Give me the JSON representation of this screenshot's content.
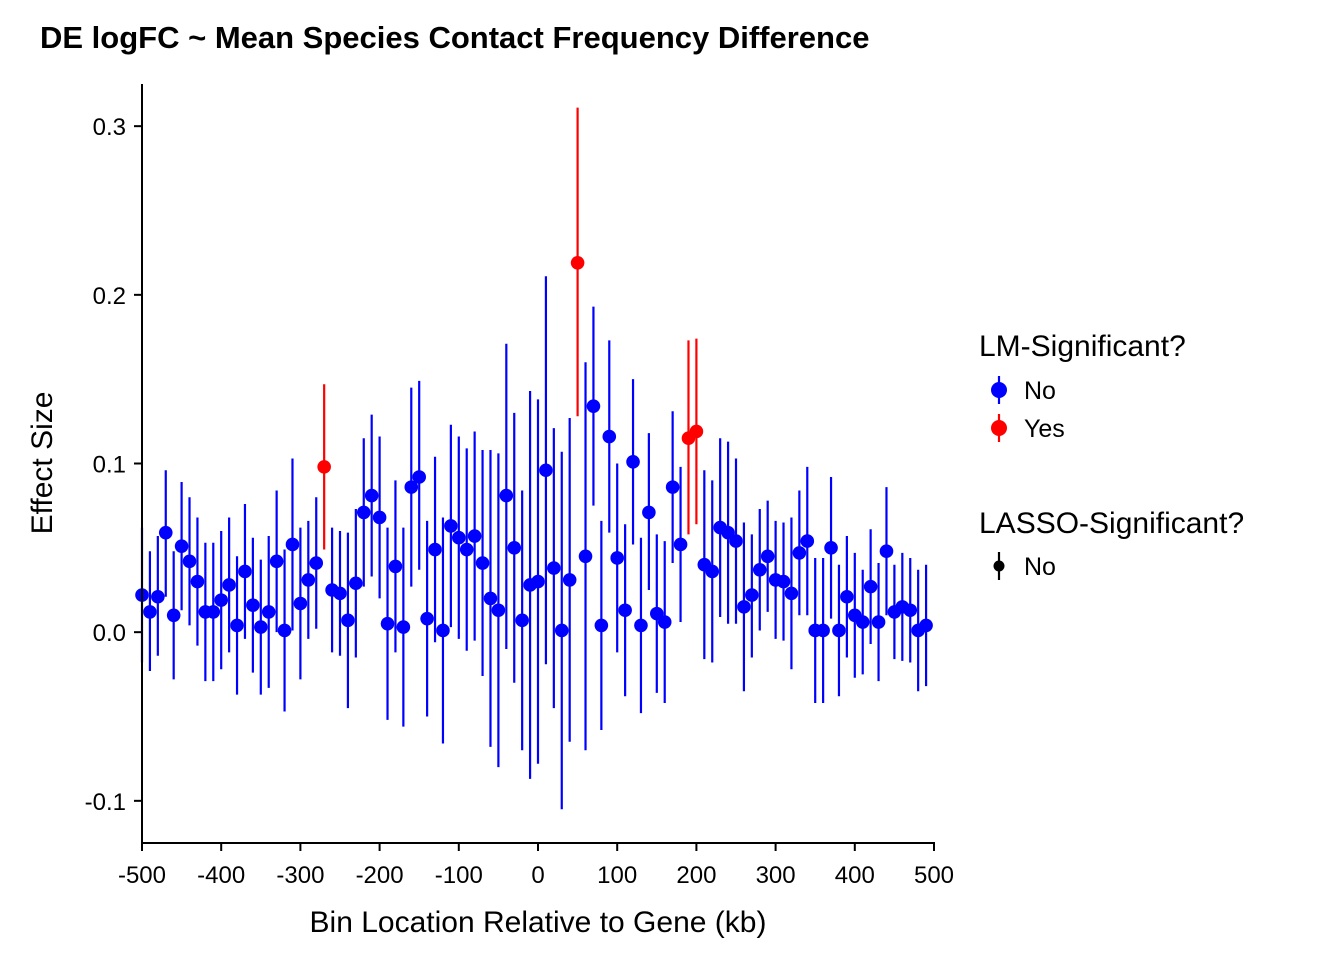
{
  "chart_data": {
    "type": "scatter",
    "title": "DE logFC ~ Mean Species Contact Frequency Difference",
    "xlabel": "Bin Location Relative to Gene (kb)",
    "ylabel": "Effect Size",
    "xlim": [
      -500,
      500
    ],
    "ylim": [
      -0.125,
      0.325
    ],
    "x_ticks": [
      -500,
      -400,
      -300,
      -200,
      -100,
      0,
      100,
      200,
      300,
      400,
      500
    ],
    "x_tick_labels": [
      "-500",
      "-400",
      "-300",
      "-200",
      "-100",
      "0",
      "100",
      "200",
      "300",
      "400",
      "500"
    ],
    "y_ticks": [
      -0.1,
      0.0,
      0.1,
      0.2,
      0.3
    ],
    "y_tick_labels": [
      "-0.1",
      "0.0",
      "0.1",
      "0.2",
      "0.3"
    ],
    "grid": false,
    "legend_placement": "right",
    "colors": {
      "No": "#0000ff",
      "Yes": "#ff0000",
      "lasso": "#000000"
    },
    "legends": [
      {
        "title": "LM-Significant?",
        "entries": [
          {
            "label": "No",
            "color": "#0000ff"
          },
          {
            "label": "Yes",
            "color": "#ff0000"
          }
        ]
      },
      {
        "title": "LASSO-Significant?",
        "entries": [
          {
            "label": "No",
            "color": "#000000"
          }
        ]
      }
    ],
    "points": [
      {
        "x": -500,
        "y": 0.022,
        "lo": -0.018,
        "hi": 0.062,
        "sig": "No"
      },
      {
        "x": -490,
        "y": 0.012,
        "lo": -0.023,
        "hi": 0.048,
        "sig": "No"
      },
      {
        "x": -480,
        "y": 0.021,
        "lo": -0.014,
        "hi": 0.057,
        "sig": "No"
      },
      {
        "x": -470,
        "y": 0.059,
        "lo": 0.021,
        "hi": 0.096,
        "sig": "No"
      },
      {
        "x": -460,
        "y": 0.01,
        "lo": -0.028,
        "hi": 0.048,
        "sig": "No"
      },
      {
        "x": -450,
        "y": 0.051,
        "lo": 0.013,
        "hi": 0.089,
        "sig": "No"
      },
      {
        "x": -440,
        "y": 0.042,
        "lo": 0.004,
        "hi": 0.08,
        "sig": "No"
      },
      {
        "x": -430,
        "y": 0.03,
        "lo": -0.008,
        "hi": 0.068,
        "sig": "No"
      },
      {
        "x": -420,
        "y": 0.012,
        "lo": -0.029,
        "hi": 0.053,
        "sig": "No"
      },
      {
        "x": -410,
        "y": 0.012,
        "lo": -0.029,
        "hi": 0.053,
        "sig": "No"
      },
      {
        "x": -400,
        "y": 0.019,
        "lo": -0.022,
        "hi": 0.06,
        "sig": "No"
      },
      {
        "x": -390,
        "y": 0.028,
        "lo": -0.012,
        "hi": 0.068,
        "sig": "No"
      },
      {
        "x": -380,
        "y": 0.004,
        "lo": -0.037,
        "hi": 0.045,
        "sig": "No"
      },
      {
        "x": -370,
        "y": 0.036,
        "lo": -0.004,
        "hi": 0.076,
        "sig": "No"
      },
      {
        "x": -360,
        "y": 0.016,
        "lo": -0.024,
        "hi": 0.056,
        "sig": "No"
      },
      {
        "x": -350,
        "y": 0.003,
        "lo": -0.037,
        "hi": 0.043,
        "sig": "No"
      },
      {
        "x": -340,
        "y": 0.012,
        "lo": -0.033,
        "hi": 0.057,
        "sig": "No"
      },
      {
        "x": -330,
        "y": 0.042,
        "lo": 0.0,
        "hi": 0.084,
        "sig": "No"
      },
      {
        "x": -320,
        "y": 0.001,
        "lo": -0.047,
        "hi": 0.049,
        "sig": "No"
      },
      {
        "x": -310,
        "y": 0.052,
        "lo": 0.001,
        "hi": 0.103,
        "sig": "No"
      },
      {
        "x": -300,
        "y": 0.017,
        "lo": -0.028,
        "hi": 0.062,
        "sig": "No"
      },
      {
        "x": -290,
        "y": 0.031,
        "lo": -0.004,
        "hi": 0.066,
        "sig": "No"
      },
      {
        "x": -280,
        "y": 0.041,
        "lo": 0.002,
        "hi": 0.08,
        "sig": "No"
      },
      {
        "x": -270,
        "y": 0.098,
        "lo": 0.049,
        "hi": 0.147,
        "sig": "Yes"
      },
      {
        "x": -260,
        "y": 0.025,
        "lo": -0.012,
        "hi": 0.062,
        "sig": "No"
      },
      {
        "x": -250,
        "y": 0.023,
        "lo": -0.014,
        "hi": 0.06,
        "sig": "No"
      },
      {
        "x": -240,
        "y": 0.007,
        "lo": -0.045,
        "hi": 0.059,
        "sig": "No"
      },
      {
        "x": -230,
        "y": 0.029,
        "lo": -0.015,
        "hi": 0.073,
        "sig": "No"
      },
      {
        "x": -220,
        "y": 0.071,
        "lo": 0.027,
        "hi": 0.115,
        "sig": "No"
      },
      {
        "x": -210,
        "y": 0.081,
        "lo": 0.033,
        "hi": 0.129,
        "sig": "No"
      },
      {
        "x": -200,
        "y": 0.068,
        "lo": 0.02,
        "hi": 0.116,
        "sig": "No"
      },
      {
        "x": -190,
        "y": 0.005,
        "lo": -0.052,
        "hi": 0.062,
        "sig": "No"
      },
      {
        "x": -180,
        "y": 0.039,
        "lo": -0.012,
        "hi": 0.09,
        "sig": "No"
      },
      {
        "x": -170,
        "y": 0.003,
        "lo": -0.056,
        "hi": 0.062,
        "sig": "No"
      },
      {
        "x": -160,
        "y": 0.086,
        "lo": 0.027,
        "hi": 0.145,
        "sig": "No"
      },
      {
        "x": -150,
        "y": 0.092,
        "lo": 0.037,
        "hi": 0.149,
        "sig": "No"
      },
      {
        "x": -140,
        "y": 0.008,
        "lo": -0.05,
        "hi": 0.066,
        "sig": "No"
      },
      {
        "x": -130,
        "y": 0.049,
        "lo": -0.006,
        "hi": 0.104,
        "sig": "No"
      },
      {
        "x": -120,
        "y": 0.001,
        "lo": -0.066,
        "hi": 0.068,
        "sig": "No"
      },
      {
        "x": -110,
        "y": 0.063,
        "lo": 0.003,
        "hi": 0.123,
        "sig": "No"
      },
      {
        "x": -100,
        "y": 0.056,
        "lo": -0.004,
        "hi": 0.116,
        "sig": "No"
      },
      {
        "x": -90,
        "y": 0.049,
        "lo": -0.011,
        "hi": 0.109,
        "sig": "No"
      },
      {
        "x": -80,
        "y": 0.057,
        "lo": -0.005,
        "hi": 0.119,
        "sig": "No"
      },
      {
        "x": -70,
        "y": 0.041,
        "lo": -0.026,
        "hi": 0.108,
        "sig": "No"
      },
      {
        "x": -60,
        "y": 0.02,
        "lo": -0.068,
        "hi": 0.108,
        "sig": "No"
      },
      {
        "x": -50,
        "y": 0.013,
        "lo": -0.08,
        "hi": 0.106,
        "sig": "No"
      },
      {
        "x": -40,
        "y": 0.081,
        "lo": -0.01,
        "hi": 0.171,
        "sig": "No"
      },
      {
        "x": -30,
        "y": 0.05,
        "lo": -0.03,
        "hi": 0.13,
        "sig": "No"
      },
      {
        "x": -20,
        "y": 0.007,
        "lo": -0.07,
        "hi": 0.084,
        "sig": "No"
      },
      {
        "x": -10,
        "y": 0.028,
        "lo": -0.087,
        "hi": 0.143,
        "sig": "No"
      },
      {
        "x": 0,
        "y": 0.03,
        "lo": -0.078,
        "hi": 0.138,
        "sig": "No"
      },
      {
        "x": 10,
        "y": 0.096,
        "lo": -0.019,
        "hi": 0.211,
        "sig": "No"
      },
      {
        "x": 20,
        "y": 0.038,
        "lo": -0.045,
        "hi": 0.121,
        "sig": "No"
      },
      {
        "x": 30,
        "y": 0.001,
        "lo": -0.105,
        "hi": 0.107,
        "sig": "No"
      },
      {
        "x": 40,
        "y": 0.031,
        "lo": -0.065,
        "hi": 0.127,
        "sig": "No"
      },
      {
        "x": 50,
        "y": 0.219,
        "lo": 0.128,
        "hi": 0.311,
        "sig": "Yes"
      },
      {
        "x": 60,
        "y": 0.045,
        "lo": -0.07,
        "hi": 0.16,
        "sig": "No"
      },
      {
        "x": 70,
        "y": 0.134,
        "lo": 0.075,
        "hi": 0.193,
        "sig": "No"
      },
      {
        "x": 80,
        "y": 0.004,
        "lo": -0.058,
        "hi": 0.066,
        "sig": "No"
      },
      {
        "x": 90,
        "y": 0.116,
        "lo": 0.059,
        "hi": 0.173,
        "sig": "No"
      },
      {
        "x": 100,
        "y": 0.044,
        "lo": -0.012,
        "hi": 0.1,
        "sig": "No"
      },
      {
        "x": 110,
        "y": 0.013,
        "lo": -0.038,
        "hi": 0.064,
        "sig": "No"
      },
      {
        "x": 120,
        "y": 0.101,
        "lo": 0.052,
        "hi": 0.15,
        "sig": "No"
      },
      {
        "x": 130,
        "y": 0.004,
        "lo": -0.048,
        "hi": 0.056,
        "sig": "No"
      },
      {
        "x": 140,
        "y": 0.071,
        "lo": 0.025,
        "hi": 0.118,
        "sig": "No"
      },
      {
        "x": 150,
        "y": 0.011,
        "lo": -0.036,
        "hi": 0.058,
        "sig": "No"
      },
      {
        "x": 160,
        "y": 0.006,
        "lo": -0.042,
        "hi": 0.054,
        "sig": "No"
      },
      {
        "x": 170,
        "y": 0.086,
        "lo": 0.041,
        "hi": 0.131,
        "sig": "No"
      },
      {
        "x": 180,
        "y": 0.052,
        "lo": 0.006,
        "hi": 0.098,
        "sig": "No"
      },
      {
        "x": 190,
        "y": 0.115,
        "lo": 0.058,
        "hi": 0.173,
        "sig": "Yes"
      },
      {
        "x": 200,
        "y": 0.119,
        "lo": 0.064,
        "hi": 0.174,
        "sig": "Yes"
      },
      {
        "x": 210,
        "y": 0.04,
        "lo": -0.016,
        "hi": 0.096,
        "sig": "No"
      },
      {
        "x": 220,
        "y": 0.036,
        "lo": -0.018,
        "hi": 0.09,
        "sig": "No"
      },
      {
        "x": 230,
        "y": 0.062,
        "lo": 0.009,
        "hi": 0.115,
        "sig": "No"
      },
      {
        "x": 240,
        "y": 0.059,
        "lo": 0.005,
        "hi": 0.113,
        "sig": "No"
      },
      {
        "x": 250,
        "y": 0.054,
        "lo": 0.005,
        "hi": 0.103,
        "sig": "No"
      },
      {
        "x": 260,
        "y": 0.015,
        "lo": -0.035,
        "hi": 0.065,
        "sig": "No"
      },
      {
        "x": 270,
        "y": 0.022,
        "lo": -0.015,
        "hi": 0.058,
        "sig": "No"
      },
      {
        "x": 280,
        "y": 0.037,
        "lo": 0.001,
        "hi": 0.073,
        "sig": "No"
      },
      {
        "x": 290,
        "y": 0.045,
        "lo": 0.012,
        "hi": 0.078,
        "sig": "No"
      },
      {
        "x": 300,
        "y": 0.031,
        "lo": -0.004,
        "hi": 0.066,
        "sig": "No"
      },
      {
        "x": 310,
        "y": 0.03,
        "lo": -0.005,
        "hi": 0.065,
        "sig": "No"
      },
      {
        "x": 320,
        "y": 0.023,
        "lo": -0.022,
        "hi": 0.068,
        "sig": "No"
      },
      {
        "x": 330,
        "y": 0.047,
        "lo": 0.01,
        "hi": 0.084,
        "sig": "No"
      },
      {
        "x": 340,
        "y": 0.054,
        "lo": 0.01,
        "hi": 0.098,
        "sig": "No"
      },
      {
        "x": 350,
        "y": 0.001,
        "lo": -0.042,
        "hi": 0.044,
        "sig": "No"
      },
      {
        "x": 360,
        "y": 0.001,
        "lo": -0.042,
        "hi": 0.044,
        "sig": "No"
      },
      {
        "x": 370,
        "y": 0.05,
        "lo": 0.008,
        "hi": 0.092,
        "sig": "No"
      },
      {
        "x": 380,
        "y": 0.001,
        "lo": -0.038,
        "hi": 0.04,
        "sig": "No"
      },
      {
        "x": 390,
        "y": 0.021,
        "lo": -0.015,
        "hi": 0.057,
        "sig": "No"
      },
      {
        "x": 400,
        "y": 0.01,
        "lo": -0.027,
        "hi": 0.047,
        "sig": "No"
      },
      {
        "x": 410,
        "y": 0.006,
        "lo": -0.025,
        "hi": 0.037,
        "sig": "No"
      },
      {
        "x": 420,
        "y": 0.027,
        "lo": -0.007,
        "hi": 0.061,
        "sig": "No"
      },
      {
        "x": 430,
        "y": 0.006,
        "lo": -0.029,
        "hi": 0.041,
        "sig": "No"
      },
      {
        "x": 440,
        "y": 0.048,
        "lo": 0.01,
        "hi": 0.086,
        "sig": "No"
      },
      {
        "x": 450,
        "y": 0.012,
        "lo": -0.016,
        "hi": 0.04,
        "sig": "No"
      },
      {
        "x": 460,
        "y": 0.015,
        "lo": -0.017,
        "hi": 0.047,
        "sig": "No"
      },
      {
        "x": 470,
        "y": 0.013,
        "lo": -0.018,
        "hi": 0.044,
        "sig": "No"
      },
      {
        "x": 480,
        "y": 0.001,
        "lo": -0.035,
        "hi": 0.037,
        "sig": "No"
      },
      {
        "x": 490,
        "y": 0.004,
        "lo": -0.032,
        "hi": 0.04,
        "sig": "No"
      }
    ]
  }
}
